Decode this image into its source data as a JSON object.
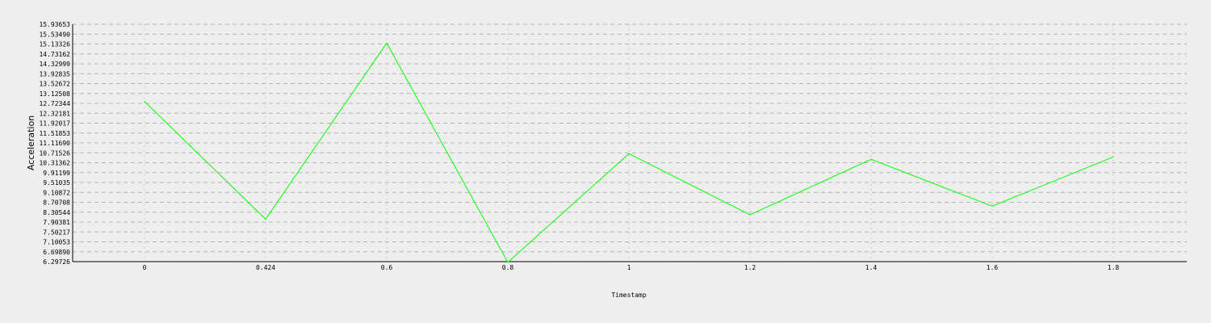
{
  "chart_data": {
    "type": "line",
    "xlabel": "Timestamp",
    "ylabel": "Acceleration",
    "x_tick_labels": [
      "0",
      "0.424",
      "0.6",
      "0.8",
      "1",
      "1.2",
      "1.4",
      "1.6",
      "1.8"
    ],
    "y_tick_labels": [
      "6.29726",
      "6.69890",
      "7.10053",
      "7.50217",
      "7.90381",
      "8.30544",
      "8.70708",
      "9.10872",
      "9.51035",
      "9.91199",
      "10.31362",
      "10.71526",
      "11.11690",
      "11.51853",
      "11.92017",
      "12.32181",
      "12.72344",
      "13.12508",
      "13.52672",
      "13.92835",
      "14.32999",
      "14.73162",
      "15.13326",
      "15.53490",
      "15.93653"
    ],
    "ylim": [
      6.29726,
      15.93653
    ],
    "grid": true,
    "series": [
      {
        "color": "#00ff00",
        "points": [
          {
            "x": "0",
            "y": 12.8
          },
          {
            "x": "0.424",
            "y": 8.02
          },
          {
            "x": "0.6",
            "y": 15.17
          },
          {
            "x": "0.8",
            "y": 6.27
          },
          {
            "x": "1",
            "y": 10.68
          },
          {
            "x": "1.2",
            "y": 8.2
          },
          {
            "x": "1.4",
            "y": 10.45
          },
          {
            "x": "1.6",
            "y": 8.55
          },
          {
            "x": "1.8",
            "y": 10.55
          }
        ]
      }
    ]
  }
}
